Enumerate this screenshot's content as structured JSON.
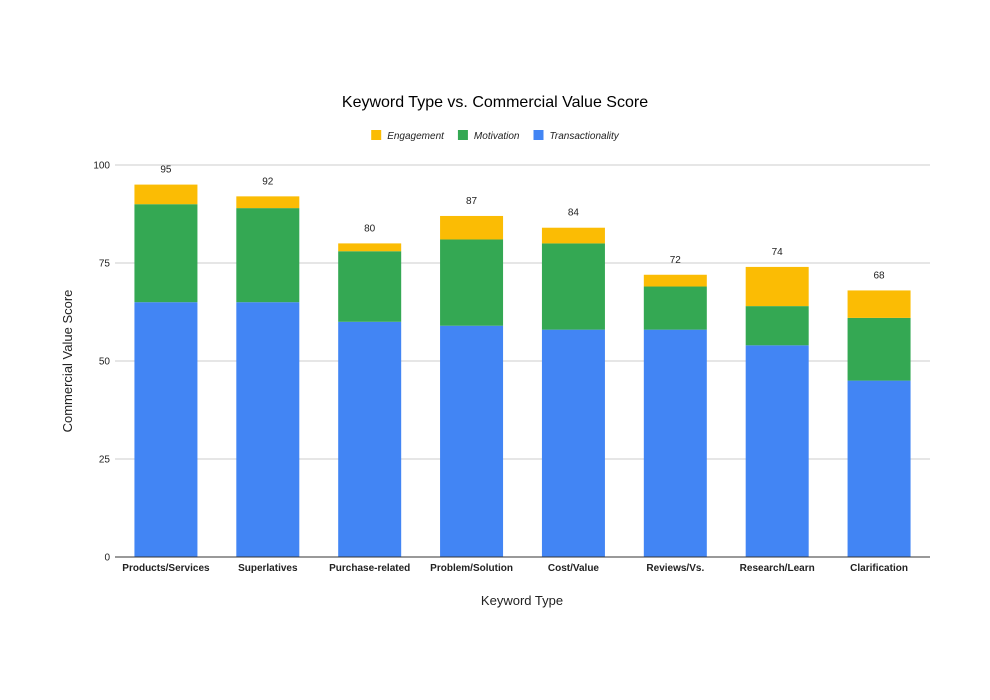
{
  "chart_data": {
    "type": "bar",
    "stacked": true,
    "title": "Keyword Type vs. Commercial Value Score",
    "xlabel": "Keyword Type",
    "ylabel": "Commercial Value Score",
    "ylim": [
      0,
      100
    ],
    "yticks": [
      0,
      25,
      50,
      75,
      100
    ],
    "grid": true,
    "legend_position": "top",
    "categories": [
      "Products/Services",
      "Superlatives",
      "Purchase-related",
      "Problem/Solution",
      "Cost/Value",
      "Reviews/Vs.",
      "Research/Learn",
      "Clarification"
    ],
    "series": [
      {
        "name": "Transactionality",
        "color": "#4285f4",
        "values": [
          65,
          65,
          60,
          59,
          58,
          58,
          54,
          45
        ]
      },
      {
        "name": "Motivation",
        "color": "#34a853",
        "values": [
          25,
          24,
          18,
          22,
          22,
          11,
          10,
          16
        ]
      },
      {
        "name": "Engagement",
        "color": "#fbbc04",
        "values": [
          5,
          3,
          2,
          6,
          4,
          3,
          10,
          7
        ]
      }
    ],
    "legend_order": [
      "Engagement",
      "Motivation",
      "Transactionality"
    ],
    "totals": [
      95,
      92,
      80,
      87,
      84,
      72,
      74,
      68
    ]
  }
}
